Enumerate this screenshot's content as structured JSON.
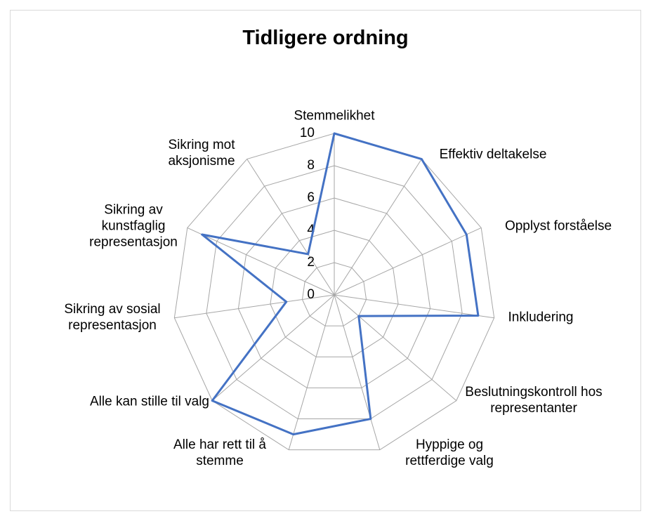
{
  "chart_data": {
    "type": "radar",
    "title": "Tidligere ordning",
    "categories": [
      "Stemmelikhet",
      "Effektiv deltakelse",
      "Opplyst forståelse",
      "Inkludering",
      "Beslutningskontroll hos representanter",
      "Hyppige og rettferdige valg",
      "Alle har rett til å stemme",
      "Alle kan stille til valg",
      "Sikring av sosial representasjon",
      "Sikring av kunstfaglig representasjon",
      "Sikring mot aksjonisme"
    ],
    "values": [
      10,
      10,
      9,
      9,
      2,
      8,
      9,
      10,
      3,
      9,
      3
    ],
    "color": "#4472c4",
    "ylim": [
      0,
      10
    ],
    "yticks": [
      0,
      2,
      4,
      6,
      8,
      10
    ],
    "grid": true
  }
}
